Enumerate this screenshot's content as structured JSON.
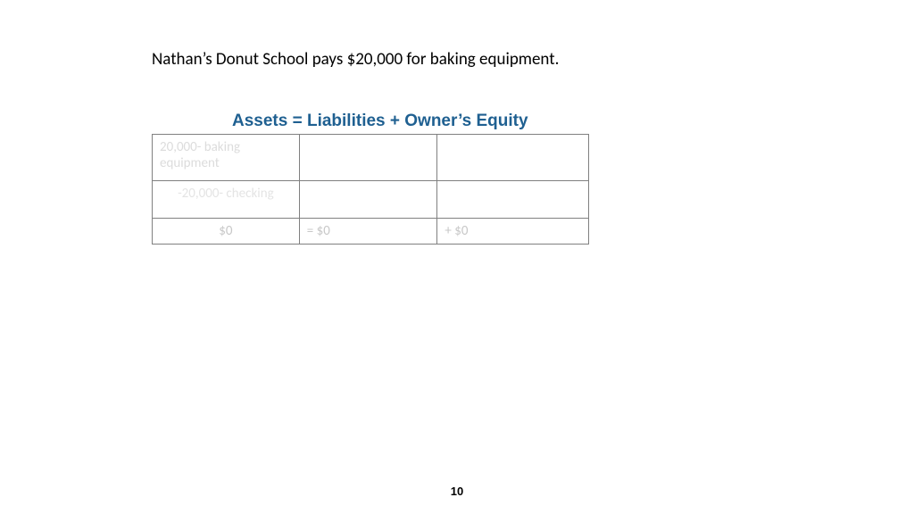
{
  "description": "Nathan’s Donut School pays $20,000 for baking equipment.",
  "equation_header": "Assets  =  Liabilities + Owner’s Equity",
  "table": {
    "columns": [
      "Assets",
      "Liabilities",
      "Owner's Equity"
    ],
    "rows": [
      {
        "assets": "20,000- baking equipment",
        "liabilities": "",
        "equity": ""
      },
      {
        "assets": "-20,000- checking",
        "liabilities": "",
        "equity": ""
      },
      {
        "assets": "$0",
        "liabilities": "=    $0",
        "equity": "+    $0"
      }
    ]
  },
  "page_number": "10",
  "colors": {
    "heading": "#1f6091",
    "border": "#808080",
    "faint_row1": "#dcdcdc",
    "faint_row2": "#e4e4e4",
    "faint_row3": "#c8c8c8",
    "background": "#ffffff"
  },
  "fonts": {
    "body_size_pt": 14,
    "heading_size_pt": 14,
    "heading_weight": "bold"
  }
}
